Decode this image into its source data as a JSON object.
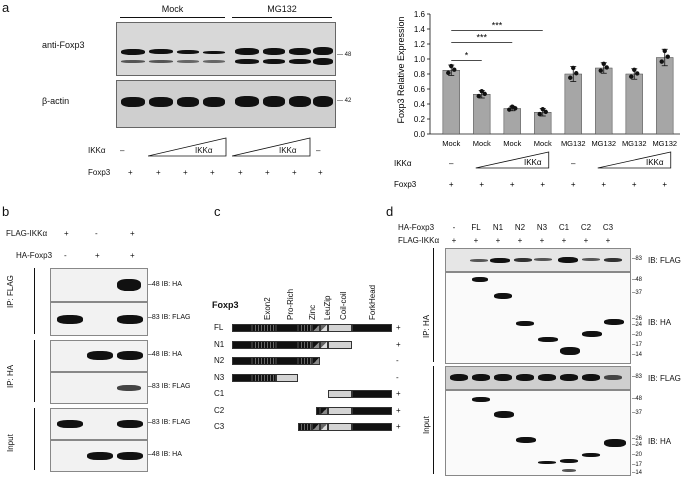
{
  "panels": {
    "a": "a",
    "b": "b",
    "c": "c",
    "d": "d"
  },
  "a": {
    "group_mock": "Mock",
    "group_mg132": "MG132",
    "row_foxp3": "anti-Foxp3",
    "row_actin": "β-actin",
    "mw_48": "48",
    "mw_42": "42",
    "ikka_label": "IKKα",
    "ikka_wedge": "IKKα",
    "foxp3_label": "Foxp3",
    "dash": "–",
    "plus": "+"
  },
  "chart_data": {
    "type": "bar",
    "ylabel": "Foxp3 Relative Expression",
    "ylim": [
      0,
      1.6
    ],
    "yticks": [
      "0.0",
      "0.2",
      "0.4",
      "0.6",
      "0.8",
      "1.0",
      "1.2",
      "1.4",
      "1.6"
    ],
    "categories": [
      "Mock",
      "Mock",
      "Mock",
      "Mock",
      "MG132",
      "MG132",
      "MG132",
      "MG132"
    ],
    "values": [
      0.85,
      0.53,
      0.34,
      0.29,
      0.8,
      0.88,
      0.8,
      1.02
    ],
    "errors": [
      0.07,
      0.05,
      0.03,
      0.05,
      0.1,
      0.07,
      0.07,
      0.11
    ],
    "significance": [
      {
        "from": 0,
        "to": 1,
        "label": "*"
      },
      {
        "from": 0,
        "to": 2,
        "label": "***"
      },
      {
        "from": 0,
        "to": 3,
        "label": "***"
      }
    ],
    "ikka_label": "IKKα",
    "foxp3_label": "Foxp3",
    "bar_color": "#a6a6a6"
  },
  "b": {
    "flag_ikka": "FLAG-IKKα",
    "ha_foxp3": "HA-Foxp3",
    "flag_row": [
      "+",
      "-",
      "+"
    ],
    "ha_row": [
      "-",
      "+",
      "+"
    ],
    "ip_flag": "IP: FLAG",
    "ip_ha": "IP: HA",
    "input": "Input",
    "ib_ha": "IB: HA",
    "ib_flag": "IB: FLAG",
    "mw_48": "48",
    "mw_83": "83"
  },
  "c": {
    "title": "Foxp3",
    "domains": [
      "Exon2",
      "Pro-Rich",
      "Zinc",
      "LeuZip",
      "Coil-coil",
      "ForkHead"
    ],
    "constructs": [
      {
        "name": "FL",
        "result": "+"
      },
      {
        "name": "N1",
        "result": "+"
      },
      {
        "name": "N2",
        "result": "-"
      },
      {
        "name": "N3",
        "result": "-"
      },
      {
        "name": "C1",
        "result": "+"
      },
      {
        "name": "C2",
        "result": "+"
      },
      {
        "name": "C3",
        "result": "+"
      }
    ]
  },
  "d": {
    "ha_foxp3": "HA-Foxp3",
    "flag_ikka": "FLAG-IKKα",
    "lanes": [
      "-",
      "FL",
      "N1",
      "N2",
      "N3",
      "C1",
      "C2",
      "C3"
    ],
    "flag_row": [
      "+",
      "+",
      "+",
      "+",
      "+",
      "+",
      "+",
      "+"
    ],
    "ip_ha": "IP: HA",
    "input": "Input",
    "ib_flag": "IB: FLAG",
    "ib_ha": "IB: HA",
    "mw_top": "83",
    "mw_ha": [
      "48",
      "37",
      "26",
      "24",
      "20",
      "17",
      "14"
    ],
    "mw_flag2": "83",
    "mw_ha2": [
      "48",
      "37",
      "26",
      "24",
      "20",
      "17",
      "14"
    ]
  }
}
